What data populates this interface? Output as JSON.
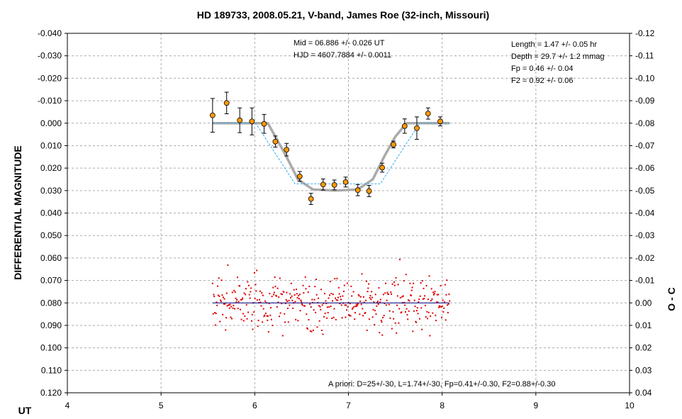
{
  "chart_data": {
    "type": "scatter",
    "title": "HD 189733, 2008.05.21, V-band, James Roe (32-inch, Missouri)",
    "xlabel": "UT",
    "ylabel": "DIFFERENTIAL MAGNITUDE",
    "y2label": "O - C",
    "xlim": [
      4,
      10
    ],
    "ylim": [
      -0.04,
      0.12
    ],
    "y_inverted": true,
    "y2lim": [
      -0.12,
      0.04
    ],
    "grid": true,
    "x_ticks": [
      "4",
      "5",
      "6",
      "7",
      "8",
      "9",
      "10"
    ],
    "y_ticks": [
      "-0.040",
      "-0.030",
      "-0.020",
      "-0.010",
      "0.000",
      "0.010",
      "0.020",
      "0.030",
      "0.040",
      "0.050",
      "0.060",
      "0.070",
      "0.080",
      "0.090",
      "0.100",
      "0.110",
      "0.120"
    ],
    "y2_ticks": [
      "-0.12",
      "-0.11",
      "-0.10",
      "-0.09",
      "-0.08",
      "-0.07",
      "-0.06",
      "-0.05",
      "-0.04",
      "-0.03",
      "-0.02",
      "-0.01",
      "0.00",
      "0.01",
      "0.02",
      "0.03",
      "0.04"
    ],
    "annotations": {
      "mid": "Mid  = 06.886 +/- 0.026 UT",
      "hjd": "HJD = 4607.7884 +/- 0.0011",
      "length": "Length = 1.47 +/- 0.05 hr",
      "depth": "Depth = 29.7  +/- 1.2 mmag",
      "fp": "Fp = 0.46 +/- 0.04",
      "f2": "F2 = 0.92 +/- 0.06",
      "apriori": "A priori: D=25+/-30, L=1.74+/-30, Fp=0.41+/-0.30, F2=0.88+/-0.30"
    },
    "series": [
      {
        "kind": "binned",
        "color": "#ff9900",
        "x": [
          5.55,
          5.7,
          5.84,
          5.97,
          6.1,
          6.22,
          6.34,
          6.48,
          6.6,
          6.73,
          6.85,
          6.97,
          7.1,
          7.22,
          7.36,
          7.48,
          7.6,
          7.73,
          7.85,
          7.98
        ],
        "y": [
          -0.0035,
          -0.009,
          -0.0013,
          -0.0008,
          0.0003,
          0.0082,
          0.0118,
          0.0237,
          0.0337,
          0.0273,
          0.0275,
          0.0262,
          0.0298,
          0.0302,
          0.0198,
          0.0095,
          0.0013,
          0.0022,
          -0.0043,
          -0.0008
        ],
        "err": [
          0.0075,
          0.0048,
          0.0055,
          0.006,
          0.0042,
          0.0025,
          0.0028,
          0.0022,
          0.0025,
          0.0025,
          0.0022,
          0.0022,
          0.0025,
          0.0025,
          0.002,
          0.0015,
          0.0032,
          0.005,
          0.0025,
          0.002
        ]
      },
      {
        "kind": "model",
        "color": "#aaaaaa",
        "x": [
          5.55,
          6.14,
          6.22,
          6.34,
          6.46,
          6.62,
          6.86,
          7.1,
          7.26,
          7.38,
          7.5,
          7.62,
          8.08
        ],
        "y": [
          0.0,
          0.0,
          0.006,
          0.015,
          0.025,
          0.0295,
          0.03,
          0.0295,
          0.025,
          0.015,
          0.006,
          0.0,
          0.0
        ]
      },
      {
        "kind": "apriori",
        "color": "#33aaee",
        "x": [
          5.55,
          6.01,
          6.43,
          7.34,
          7.76,
          8.08
        ],
        "y": [
          0.0,
          0.0,
          0.027,
          0.027,
          0.0,
          0.0
        ]
      },
      {
        "kind": "residual-baseline",
        "color": "#000080",
        "x": [
          5.55,
          8.08
        ],
        "y": [
          0.0,
          0.0
        ],
        "axis": "y2"
      },
      {
        "kind": "residuals",
        "color": "#dd0000",
        "axis": "y2",
        "x_start": 5.55,
        "x_end": 8.08,
        "count": 420,
        "spread": 0.0085
      }
    ]
  }
}
